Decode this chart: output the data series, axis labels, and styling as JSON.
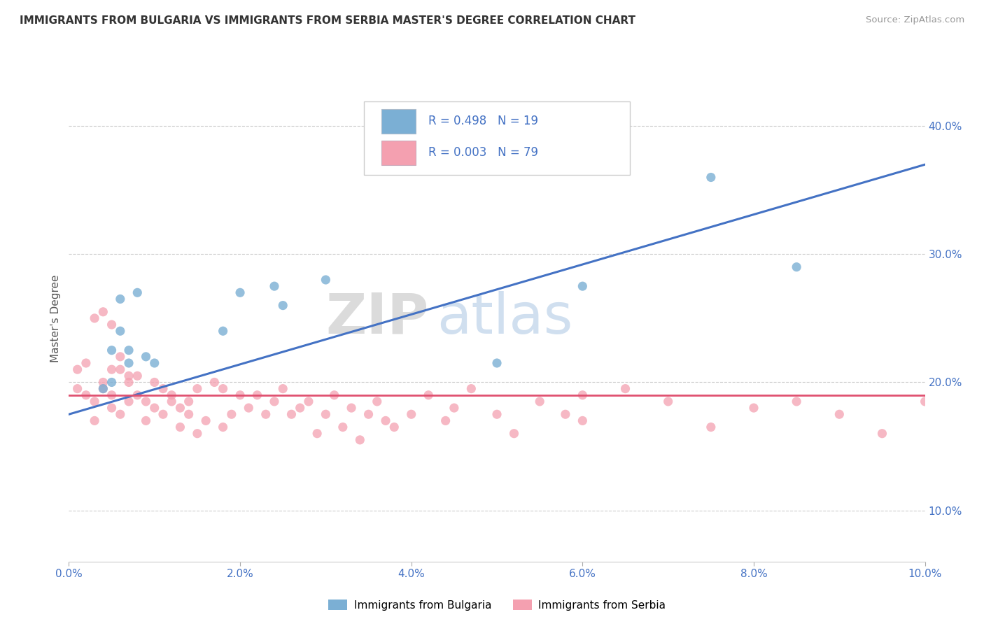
{
  "title": "IMMIGRANTS FROM BULGARIA VS IMMIGRANTS FROM SERBIA MASTER'S DEGREE CORRELATION CHART",
  "source": "Source: ZipAtlas.com",
  "ylabel": "Master's Degree",
  "legend_label1": "R = 0.498   N = 19",
  "legend_label2": "R = 0.003   N = 79",
  "color_bulgaria": "#7BAFD4",
  "color_serbia": "#F4A0B0",
  "line_color_bulgaria": "#4472C4",
  "line_color_serbia": "#E05070",
  "watermark_zip": "ZIP",
  "watermark_atlas": "atlas",
  "xlim": [
    0.0,
    0.1
  ],
  "ylim": [
    0.06,
    0.44
  ],
  "x_ticks": [
    0.0,
    0.02,
    0.04,
    0.06,
    0.08,
    0.1
  ],
  "y_ticks_right": [
    0.1,
    0.2,
    0.3,
    0.4
  ],
  "bulgaria_x": [
    0.004,
    0.005,
    0.005,
    0.006,
    0.006,
    0.007,
    0.007,
    0.008,
    0.009,
    0.01,
    0.018,
    0.02,
    0.024,
    0.025,
    0.03,
    0.05,
    0.06,
    0.075,
    0.085
  ],
  "bulgaria_y": [
    0.195,
    0.2,
    0.225,
    0.24,
    0.265,
    0.215,
    0.225,
    0.27,
    0.22,
    0.215,
    0.24,
    0.27,
    0.275,
    0.26,
    0.28,
    0.215,
    0.275,
    0.36,
    0.29
  ],
  "serbia_x": [
    0.001,
    0.001,
    0.002,
    0.002,
    0.003,
    0.003,
    0.004,
    0.004,
    0.005,
    0.005,
    0.005,
    0.006,
    0.006,
    0.007,
    0.007,
    0.007,
    0.008,
    0.008,
    0.009,
    0.009,
    0.01,
    0.01,
    0.011,
    0.011,
    0.012,
    0.012,
    0.013,
    0.013,
    0.014,
    0.014,
    0.015,
    0.015,
    0.016,
    0.017,
    0.018,
    0.018,
    0.019,
    0.02,
    0.021,
    0.022,
    0.023,
    0.024,
    0.025,
    0.026,
    0.027,
    0.028,
    0.029,
    0.03,
    0.031,
    0.032,
    0.033,
    0.034,
    0.035,
    0.036,
    0.037,
    0.038,
    0.04,
    0.042,
    0.044,
    0.045,
    0.047,
    0.05,
    0.052,
    0.055,
    0.058,
    0.06,
    0.06,
    0.065,
    0.07,
    0.075,
    0.08,
    0.085,
    0.09,
    0.095,
    0.1,
    0.003,
    0.004,
    0.005,
    0.006
  ],
  "serbia_y": [
    0.21,
    0.195,
    0.19,
    0.215,
    0.17,
    0.185,
    0.195,
    0.2,
    0.19,
    0.21,
    0.18,
    0.175,
    0.21,
    0.2,
    0.185,
    0.205,
    0.19,
    0.205,
    0.185,
    0.17,
    0.18,
    0.2,
    0.195,
    0.175,
    0.19,
    0.185,
    0.18,
    0.165,
    0.175,
    0.185,
    0.195,
    0.16,
    0.17,
    0.2,
    0.195,
    0.165,
    0.175,
    0.19,
    0.18,
    0.19,
    0.175,
    0.185,
    0.195,
    0.175,
    0.18,
    0.185,
    0.16,
    0.175,
    0.19,
    0.165,
    0.18,
    0.155,
    0.175,
    0.185,
    0.17,
    0.165,
    0.175,
    0.19,
    0.17,
    0.18,
    0.195,
    0.175,
    0.16,
    0.185,
    0.175,
    0.17,
    0.19,
    0.195,
    0.185,
    0.165,
    0.18,
    0.185,
    0.175,
    0.16,
    0.185,
    0.25,
    0.255,
    0.245,
    0.22
  ],
  "legend_items": [
    {
      "label": "Immigrants from Bulgaria",
      "color": "#7BAFD4"
    },
    {
      "label": "Immigrants from Serbia",
      "color": "#F4A0B0"
    }
  ]
}
